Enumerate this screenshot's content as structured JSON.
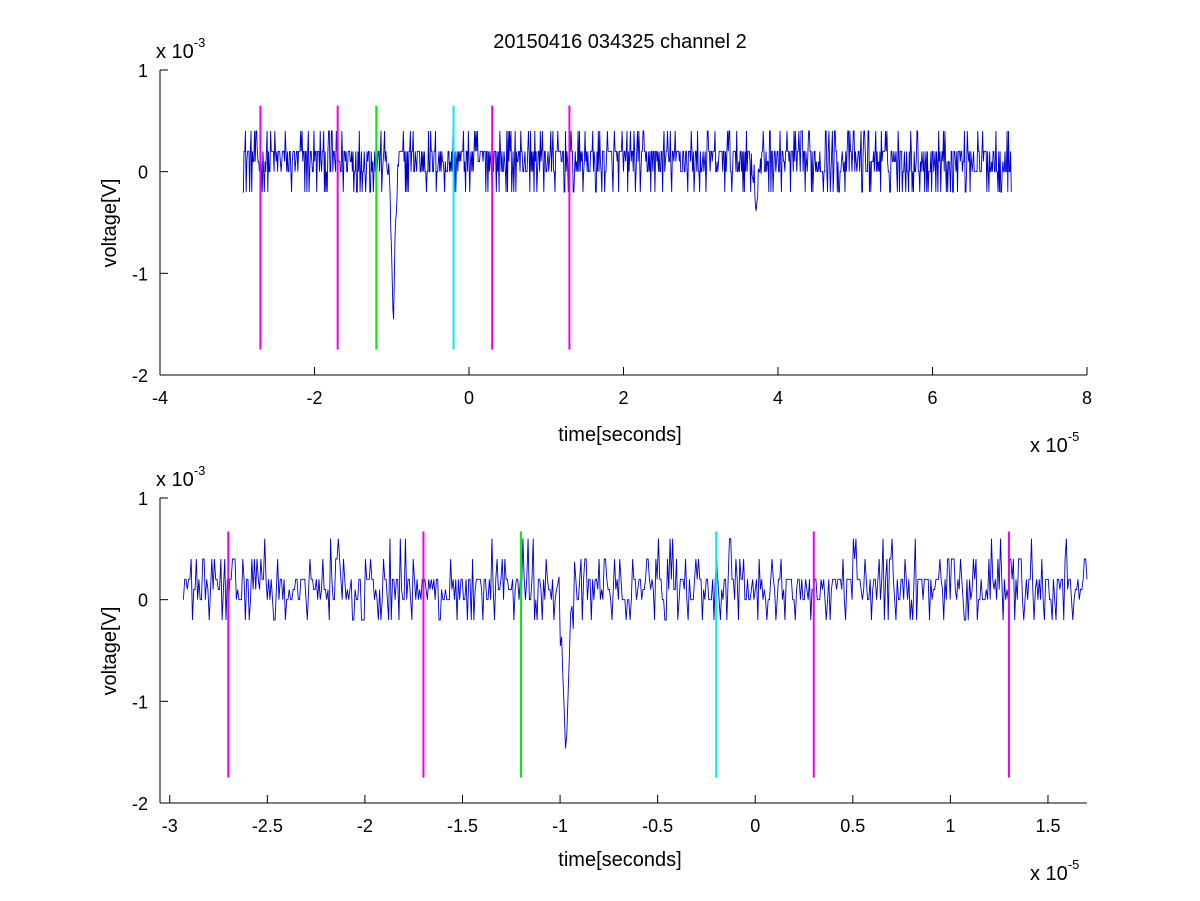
{
  "figure": {
    "title": "20150416 034325 channel 2"
  },
  "chart_data": [
    {
      "type": "line",
      "title": "20150416 034325 channel 2",
      "xlabel": "time[seconds]",
      "ylabel": "voltage[V]",
      "x_multiplier": "x 10",
      "x_multiplier_exp": "-5",
      "y_multiplier": "x 10",
      "y_multiplier_exp": "-3",
      "xlim": [
        -4,
        8
      ],
      "ylim": [
        -2,
        1
      ],
      "x_ticks": [
        "-4",
        "-2",
        "0",
        "2",
        "4",
        "6",
        "8"
      ],
      "x_tick_values": [
        -4,
        -2,
        0,
        2,
        4,
        6,
        8
      ],
      "y_ticks": [
        "-2",
        "-1",
        "0",
        "1"
      ],
      "y_tick_values": [
        -2,
        -1,
        0,
        1
      ],
      "grid": false,
      "series": [
        {
          "color": "#0000cc",
          "x_range": [
            -2.93,
            7.02
          ],
          "baseline": 0.1,
          "noise_amplitude": 0.2,
          "spikes": [
            {
              "x": -0.98,
              "y": -1.6
            },
            {
              "x": 3.72,
              "y": -0.4
            }
          ]
        }
      ],
      "markers": [
        {
          "x": -2.7,
          "color": "#ee00ee",
          "y_range": [
            -1.75,
            0.65
          ]
        },
        {
          "x": -1.7,
          "color": "#ee00ee",
          "y_range": [
            -1.75,
            0.65
          ]
        },
        {
          "x": -1.2,
          "color": "#00ee00",
          "y_range": [
            -1.75,
            0.65
          ]
        },
        {
          "x": -0.2,
          "color": "#00eeee",
          "y_range": [
            -1.75,
            0.65
          ]
        },
        {
          "x": 0.3,
          "color": "#ee00ee",
          "y_range": [
            -1.75,
            0.65
          ]
        },
        {
          "x": 1.3,
          "color": "#ee00ee",
          "y_range": [
            -1.75,
            0.65
          ]
        }
      ]
    },
    {
      "type": "line",
      "title": "",
      "xlabel": "time[seconds]",
      "ylabel": "voltage[V]",
      "x_multiplier": "x 10",
      "x_multiplier_exp": "-5",
      "y_multiplier": "x 10",
      "y_multiplier_exp": "-3",
      "xlim": [
        -3.05,
        1.7
      ],
      "ylim": [
        -2,
        1
      ],
      "x_ticks": [
        "-3",
        "-2.5",
        "-2",
        "-1.5",
        "-1",
        "-0.5",
        "0",
        "0.5",
        "1",
        "1.5"
      ],
      "x_tick_values": [
        -3,
        -2.5,
        -2,
        -1.5,
        -1,
        -0.5,
        0,
        0.5,
        1,
        1.5
      ],
      "y_ticks": [
        "-2",
        "-1",
        "0",
        "1"
      ],
      "y_tick_values": [
        -2,
        -1,
        0,
        1
      ],
      "grid": false,
      "series": [
        {
          "color": "#0000cc",
          "x_range": [
            -2.93,
            1.7
          ],
          "baseline": 0.1,
          "noise_amplitude": 0.2,
          "spikes": [
            {
              "x": -0.97,
              "y": -1.6
            }
          ]
        }
      ],
      "markers": [
        {
          "x": -2.7,
          "color": "#ee00ee",
          "y_range": [
            -1.75,
            0.67
          ]
        },
        {
          "x": -1.7,
          "color": "#ee00ee",
          "y_range": [
            -1.75,
            0.67
          ]
        },
        {
          "x": -1.2,
          "color": "#00ee00",
          "y_range": [
            -1.75,
            0.67
          ]
        },
        {
          "x": -0.2,
          "color": "#00eeee",
          "y_range": [
            -1.75,
            0.67
          ]
        },
        {
          "x": 0.3,
          "color": "#ee00ee",
          "y_range": [
            -1.75,
            0.67
          ]
        },
        {
          "x": 1.3,
          "color": "#ee00ee",
          "y_range": [
            -1.75,
            0.67
          ]
        }
      ]
    }
  ]
}
